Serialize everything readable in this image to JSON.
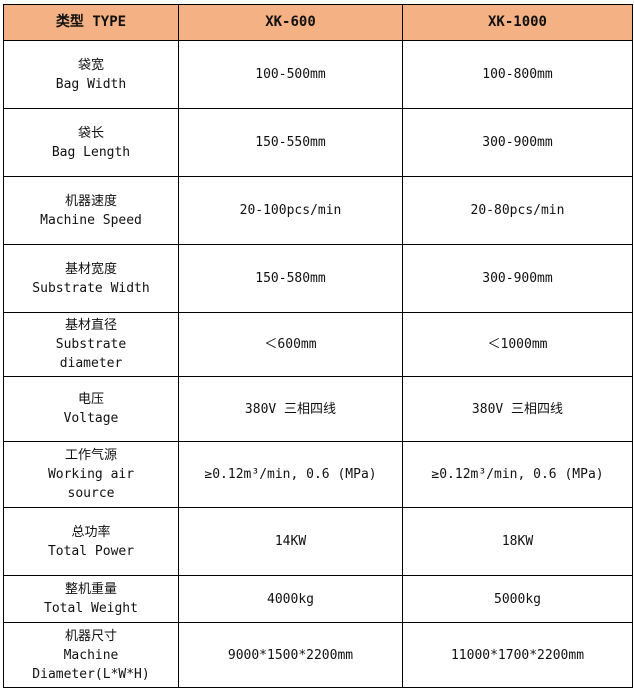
{
  "header": {
    "type_label": "类型 TYPE",
    "models": [
      "XK-600",
      "XK-1000"
    ]
  },
  "header_color": "#f4b183",
  "rows": [
    {
      "label_cn": "袋宽",
      "label_en": "Bag Width",
      "values": [
        "100-500mm",
        "100-800mm"
      ]
    },
    {
      "label_cn": "袋长",
      "label_en": "Bag Length",
      "values": [
        "150-550mm",
        "300-900mm"
      ]
    },
    {
      "label_cn": "机器速度",
      "label_en": "Machine Speed",
      "values": [
        "20-100pcs/min",
        "20-80pcs/min"
      ]
    },
    {
      "label_cn": "基材宽度",
      "label_en": "Substrate Width",
      "values": [
        "150-580mm",
        "300-900mm"
      ]
    },
    {
      "label_cn": "基材直径",
      "label_en": "Substrate diameter",
      "values": [
        "＜600mm",
        "＜1000mm"
      ]
    },
    {
      "label_cn": "电压",
      "label_en": "Voltage",
      "values": [
        "380V 三相四线",
        "380V 三相四线"
      ]
    },
    {
      "label_cn": "工作气源",
      "label_en": "Working air source",
      "values": [
        "≥0.12m³/min, 0.6 (MPa)",
        "≥0.12m³/min, 0.6 (MPa)"
      ]
    },
    {
      "label_cn": "总功率",
      "label_en": "Total Power",
      "values": [
        "14KW",
        "18KW"
      ]
    },
    {
      "label_cn": "整机重量",
      "label_en": "Total Weight",
      "values": [
        "4000kg",
        "5000kg"
      ]
    },
    {
      "label_cn": "机器尺寸",
      "label_en": "Machine Diameter(L*W*H)",
      "values": [
        "9000*1500*2200mm",
        "11000*1700*2200mm"
      ]
    }
  ]
}
